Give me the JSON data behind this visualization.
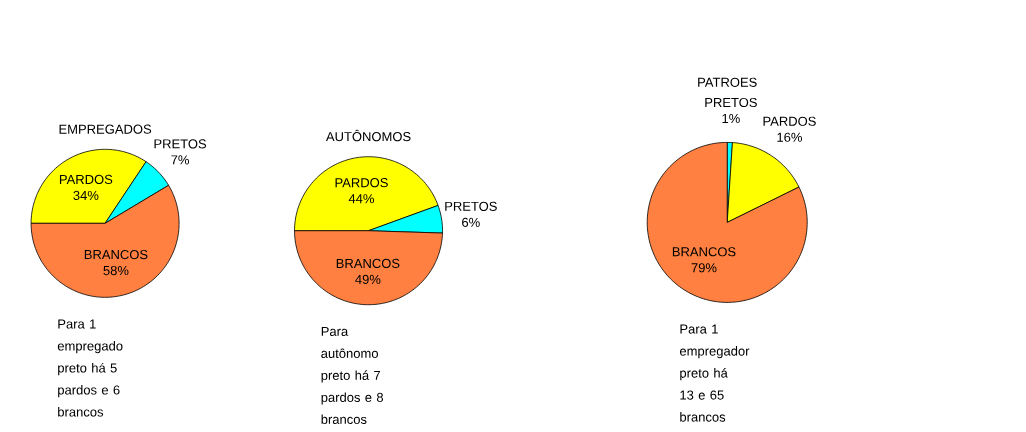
{
  "chart_data": [
    {
      "type": "pie",
      "title": "EMPREGADOS",
      "categories": [
        "PARDOS",
        "PRETOS",
        "BRANCOS"
      ],
      "values": [
        34,
        7,
        58
      ],
      "value_labels": [
        "34%",
        "7%",
        "58%"
      ],
      "colors": [
        "#ffff00",
        "#00ffff",
        "#ff8040"
      ],
      "annotations": [
        "Para 1 empregado preto há 5 pardos e 6 brancos"
      ]
    },
    {
      "type": "pie",
      "title": "AUTÔNOMOS",
      "categories": [
        "PARDOS",
        "PRETOS",
        "BRANCOS"
      ],
      "values": [
        44,
        6,
        49
      ],
      "value_labels": [
        "44%",
        "6%",
        "49%"
      ],
      "colors": [
        "#ffff00",
        "#00ffff",
        "#ff8040"
      ],
      "annotations": [
        "Para autônomo preto há 7 pardos e 8 brancos"
      ]
    },
    {
      "type": "pie",
      "title": "PATROES",
      "categories": [
        "PRETOS",
        "PARDOS",
        "BRANCOS"
      ],
      "values": [
        1,
        16,
        79
      ],
      "value_labels": [
        "1%",
        "16%",
        "79%"
      ],
      "colors": [
        "#00ffff",
        "#ffff00",
        "#ff8040"
      ],
      "annotations": [
        "Para 1 empregador preto há 13 e 65 brancos"
      ]
    }
  ]
}
